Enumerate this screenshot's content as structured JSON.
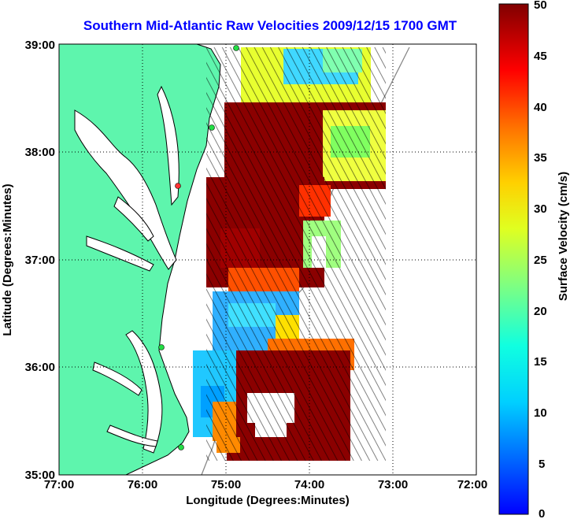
{
  "title": "Southern Mid-Atlantic Raw Velocities 2009/12/15 1700 GMT",
  "xlabel": "Longitude (Degrees:Minutes)",
  "ylabel": "Latitude (Degrees:Minutes)",
  "x_ticks": [
    "77:00",
    "76:00",
    "75:00",
    "74:00",
    "73:00",
    "72:00"
  ],
  "y_ticks": [
    "39:00",
    "38:00",
    "37:00",
    "36:00",
    "35:00"
  ],
  "colorbar": {
    "label": "Surface Velocity (cm/s)",
    "ticks": [
      "50",
      "45",
      "40",
      "35",
      "30",
      "25",
      "20",
      "15",
      "10",
      "5",
      "0"
    ],
    "range": [
      0,
      50
    ],
    "colormap": "jet"
  },
  "map": {
    "lon_range": [
      -77,
      -72
    ],
    "lat_range": [
      35,
      39
    ],
    "land_color": "#5ef5ad",
    "water_color": "#ffffff",
    "grid": "dotted",
    "coastline": "#000000",
    "bathymetry_contour": "#888888",
    "station_markers": [
      {
        "lon": -74.96,
        "lat": 38.98,
        "color": "#22dd44"
      },
      {
        "lon": -75.25,
        "lat": 38.26,
        "color": "#22dd44"
      },
      {
        "lon": -75.5,
        "lat": 37.6,
        "color": "#ff3333"
      },
      {
        "lon": -75.69,
        "lat": 36.22,
        "color": "#22dd44"
      },
      {
        "lon": -75.47,
        "lat": 35.25,
        "color": "#22dd44"
      }
    ]
  }
}
